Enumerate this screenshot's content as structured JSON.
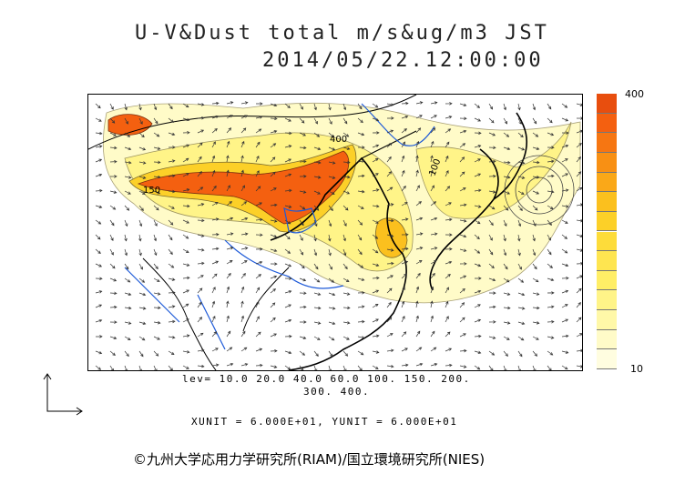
{
  "title": {
    "line1": "U-V&Dust total m/s&ug/m3 JST",
    "line2": "2014/05/22.12:00:00"
  },
  "colorbar": {
    "max_label": "400",
    "min_label": "10",
    "colors": [
      "#fffde0",
      "#fffbc8",
      "#fff8a8",
      "#fff488",
      "#ffee66",
      "#fee550",
      "#fddc3a",
      "#fcd028",
      "#fbc01e",
      "#faa818",
      "#f89014",
      "#f67612",
      "#f46010",
      "#e84e0e"
    ]
  },
  "map_labels": {
    "contour_400": "400",
    "contour_150": "150",
    "contour_100": "100"
  },
  "levels": {
    "line1": "lev= 10.0 20.0 40.0 60.0 100. 150. 200.",
    "line2": "300. 400."
  },
  "units": "XUNIT = 6.000E+01, YUNIT = 6.000E+01",
  "credit": "©九州大学応用力学研究所(RIAM)/国立環境研究所(NIES)"
}
